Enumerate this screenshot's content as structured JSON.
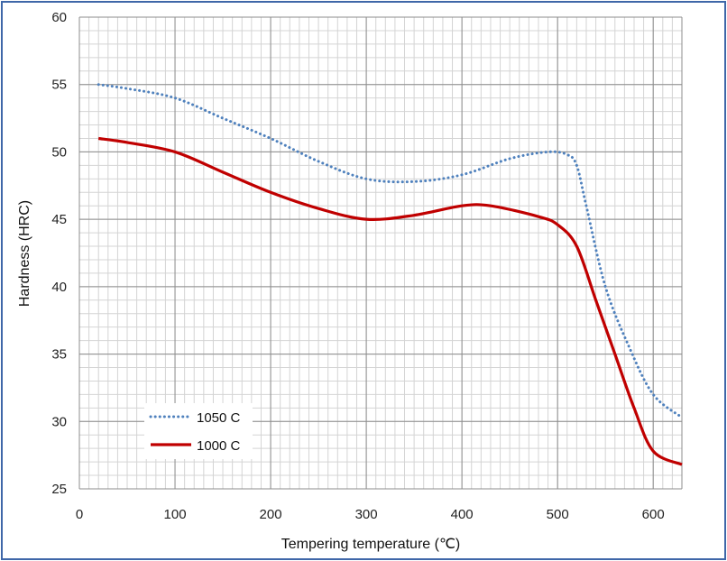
{
  "chart_data": {
    "type": "line",
    "title": "",
    "xlabel": "Tempering temperature (℃)",
    "ylabel": "Hardness (HRC)",
    "xlim": [
      0,
      630
    ],
    "ylim": [
      25,
      60
    ],
    "x_ticks": [
      0,
      100,
      200,
      300,
      400,
      500,
      600
    ],
    "y_ticks": [
      25,
      30,
      35,
      40,
      45,
      50,
      55,
      60
    ],
    "x_minor_step": 10,
    "y_minor_step": 1,
    "grid": true,
    "legend_position": "bottom-left",
    "series": [
      {
        "name": "1050 C",
        "style": "dotted",
        "color": "#4f81bd",
        "x": [
          20,
          50,
          100,
          150,
          200,
          250,
          300,
          350,
          400,
          450,
          490,
          510,
          520,
          530,
          550,
          575,
          600,
          630
        ],
        "y": [
          55,
          54.7,
          54,
          52.5,
          51,
          49.3,
          48,
          47.8,
          48.3,
          49.5,
          50,
          49.8,
          49,
          46,
          40,
          35.5,
          32,
          30.3
        ]
      },
      {
        "name": "1000 C",
        "style": "solid",
        "color": "#c00000",
        "x": [
          20,
          50,
          100,
          150,
          200,
          250,
          300,
          350,
          400,
          430,
          480,
          500,
          520,
          540,
          560,
          580,
          600,
          630
        ],
        "y": [
          51,
          50.7,
          50,
          48.5,
          47,
          45.8,
          45,
          45.3,
          46,
          46,
          45.2,
          44.6,
          43,
          39,
          35,
          31,
          27.8,
          26.8
        ]
      }
    ]
  }
}
